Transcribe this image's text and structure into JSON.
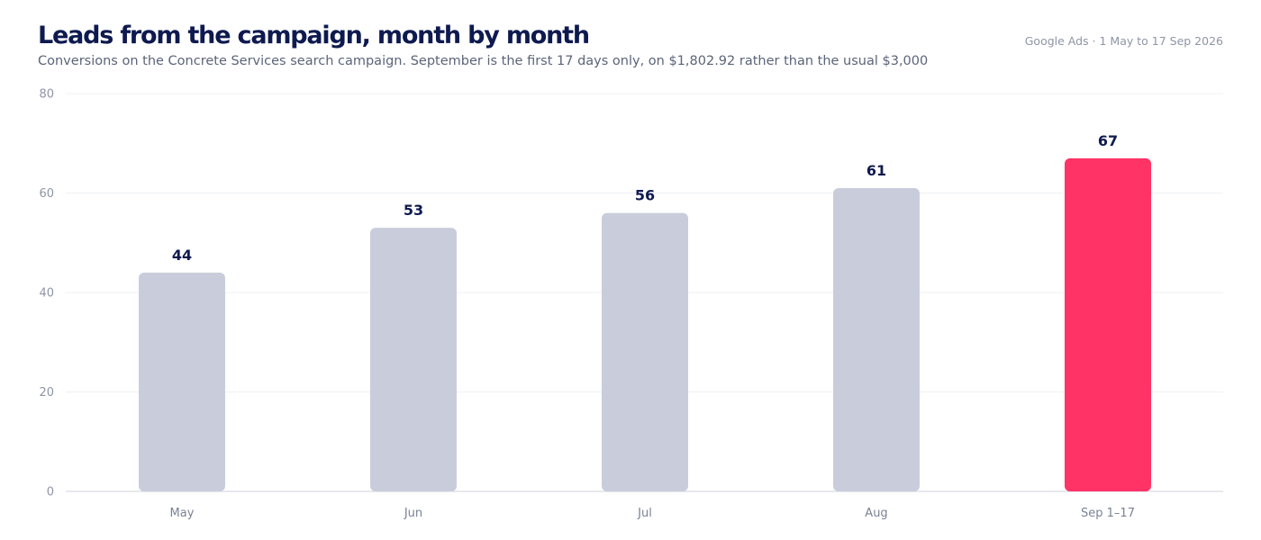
{
  "header": {
    "title": "Leads from the campaign, month by month",
    "subtitle": "Conversions on the Concrete Services search campaign. September is the first 17 days only, on $1,802.92 rather than the usual $3,000",
    "source": "Google Ads · 1 May to 17 Sep 2026"
  },
  "chart_data": {
    "type": "bar",
    "title": "Leads from the campaign, month by month",
    "subtitle": "Conversions on the Concrete Services search campaign. September is the first 17 days only, on $1,802.92 rather than the usual $3,000",
    "categories": [
      "May",
      "Jun",
      "Jul",
      "Aug",
      "Sep 1–17"
    ],
    "values": [
      44,
      53,
      56,
      61,
      67
    ],
    "ylim": [
      0,
      80
    ],
    "yticks": [
      0,
      20,
      40,
      60,
      80
    ],
    "xlabel": "",
    "ylabel": "",
    "grid": true,
    "data_labels": true,
    "colors": {
      "default_bar": "#c9cddb",
      "highlight_bar": "#ff3366",
      "label": "#0e1a4f",
      "grid": "#eef0f4",
      "axis": "#d9dce4"
    },
    "highlight_index": 4
  }
}
